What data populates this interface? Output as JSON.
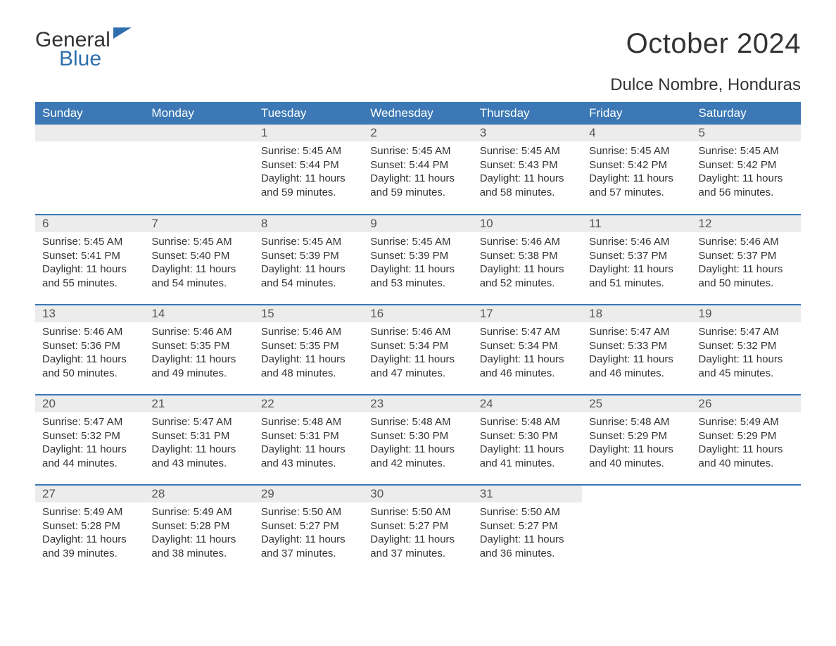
{
  "logo": {
    "part1": "General",
    "part2": "Blue"
  },
  "title": "October 2024",
  "location": "Dulce Nombre, Honduras",
  "colors": {
    "header_bg": "#3b78b5",
    "header_text": "#ffffff",
    "daynum_bg": "#ececec",
    "body_text": "#333333",
    "logo_blue": "#2f6fad",
    "page_bg": "#ffffff"
  },
  "day_headers": [
    "Sunday",
    "Monday",
    "Tuesday",
    "Wednesday",
    "Thursday",
    "Friday",
    "Saturday"
  ],
  "weeks": [
    [
      null,
      null,
      {
        "n": "1",
        "sunrise": "5:45 AM",
        "sunset": "5:44 PM",
        "dl": "11 hours and 59 minutes."
      },
      {
        "n": "2",
        "sunrise": "5:45 AM",
        "sunset": "5:44 PM",
        "dl": "11 hours and 59 minutes."
      },
      {
        "n": "3",
        "sunrise": "5:45 AM",
        "sunset": "5:43 PM",
        "dl": "11 hours and 58 minutes."
      },
      {
        "n": "4",
        "sunrise": "5:45 AM",
        "sunset": "5:42 PM",
        "dl": "11 hours and 57 minutes."
      },
      {
        "n": "5",
        "sunrise": "5:45 AM",
        "sunset": "5:42 PM",
        "dl": "11 hours and 56 minutes."
      }
    ],
    [
      {
        "n": "6",
        "sunrise": "5:45 AM",
        "sunset": "5:41 PM",
        "dl": "11 hours and 55 minutes."
      },
      {
        "n": "7",
        "sunrise": "5:45 AM",
        "sunset": "5:40 PM",
        "dl": "11 hours and 54 minutes."
      },
      {
        "n": "8",
        "sunrise": "5:45 AM",
        "sunset": "5:39 PM",
        "dl": "11 hours and 54 minutes."
      },
      {
        "n": "9",
        "sunrise": "5:45 AM",
        "sunset": "5:39 PM",
        "dl": "11 hours and 53 minutes."
      },
      {
        "n": "10",
        "sunrise": "5:46 AM",
        "sunset": "5:38 PM",
        "dl": "11 hours and 52 minutes."
      },
      {
        "n": "11",
        "sunrise": "5:46 AM",
        "sunset": "5:37 PM",
        "dl": "11 hours and 51 minutes."
      },
      {
        "n": "12",
        "sunrise": "5:46 AM",
        "sunset": "5:37 PM",
        "dl": "11 hours and 50 minutes."
      }
    ],
    [
      {
        "n": "13",
        "sunrise": "5:46 AM",
        "sunset": "5:36 PM",
        "dl": "11 hours and 50 minutes."
      },
      {
        "n": "14",
        "sunrise": "5:46 AM",
        "sunset": "5:35 PM",
        "dl": "11 hours and 49 minutes."
      },
      {
        "n": "15",
        "sunrise": "5:46 AM",
        "sunset": "5:35 PM",
        "dl": "11 hours and 48 minutes."
      },
      {
        "n": "16",
        "sunrise": "5:46 AM",
        "sunset": "5:34 PM",
        "dl": "11 hours and 47 minutes."
      },
      {
        "n": "17",
        "sunrise": "5:47 AM",
        "sunset": "5:34 PM",
        "dl": "11 hours and 46 minutes."
      },
      {
        "n": "18",
        "sunrise": "5:47 AM",
        "sunset": "5:33 PM",
        "dl": "11 hours and 46 minutes."
      },
      {
        "n": "19",
        "sunrise": "5:47 AM",
        "sunset": "5:32 PM",
        "dl": "11 hours and 45 minutes."
      }
    ],
    [
      {
        "n": "20",
        "sunrise": "5:47 AM",
        "sunset": "5:32 PM",
        "dl": "11 hours and 44 minutes."
      },
      {
        "n": "21",
        "sunrise": "5:47 AM",
        "sunset": "5:31 PM",
        "dl": "11 hours and 43 minutes."
      },
      {
        "n": "22",
        "sunrise": "5:48 AM",
        "sunset": "5:31 PM",
        "dl": "11 hours and 43 minutes."
      },
      {
        "n": "23",
        "sunrise": "5:48 AM",
        "sunset": "5:30 PM",
        "dl": "11 hours and 42 minutes."
      },
      {
        "n": "24",
        "sunrise": "5:48 AM",
        "sunset": "5:30 PM",
        "dl": "11 hours and 41 minutes."
      },
      {
        "n": "25",
        "sunrise": "5:48 AM",
        "sunset": "5:29 PM",
        "dl": "11 hours and 40 minutes."
      },
      {
        "n": "26",
        "sunrise": "5:49 AM",
        "sunset": "5:29 PM",
        "dl": "11 hours and 40 minutes."
      }
    ],
    [
      {
        "n": "27",
        "sunrise": "5:49 AM",
        "sunset": "5:28 PM",
        "dl": "11 hours and 39 minutes."
      },
      {
        "n": "28",
        "sunrise": "5:49 AM",
        "sunset": "5:28 PM",
        "dl": "11 hours and 38 minutes."
      },
      {
        "n": "29",
        "sunrise": "5:50 AM",
        "sunset": "5:27 PM",
        "dl": "11 hours and 37 minutes."
      },
      {
        "n": "30",
        "sunrise": "5:50 AM",
        "sunset": "5:27 PM",
        "dl": "11 hours and 37 minutes."
      },
      {
        "n": "31",
        "sunrise": "5:50 AM",
        "sunset": "5:27 PM",
        "dl": "11 hours and 36 minutes."
      },
      null,
      null
    ]
  ],
  "labels": {
    "sunrise": "Sunrise: ",
    "sunset": "Sunset: ",
    "daylight": "Daylight: "
  }
}
